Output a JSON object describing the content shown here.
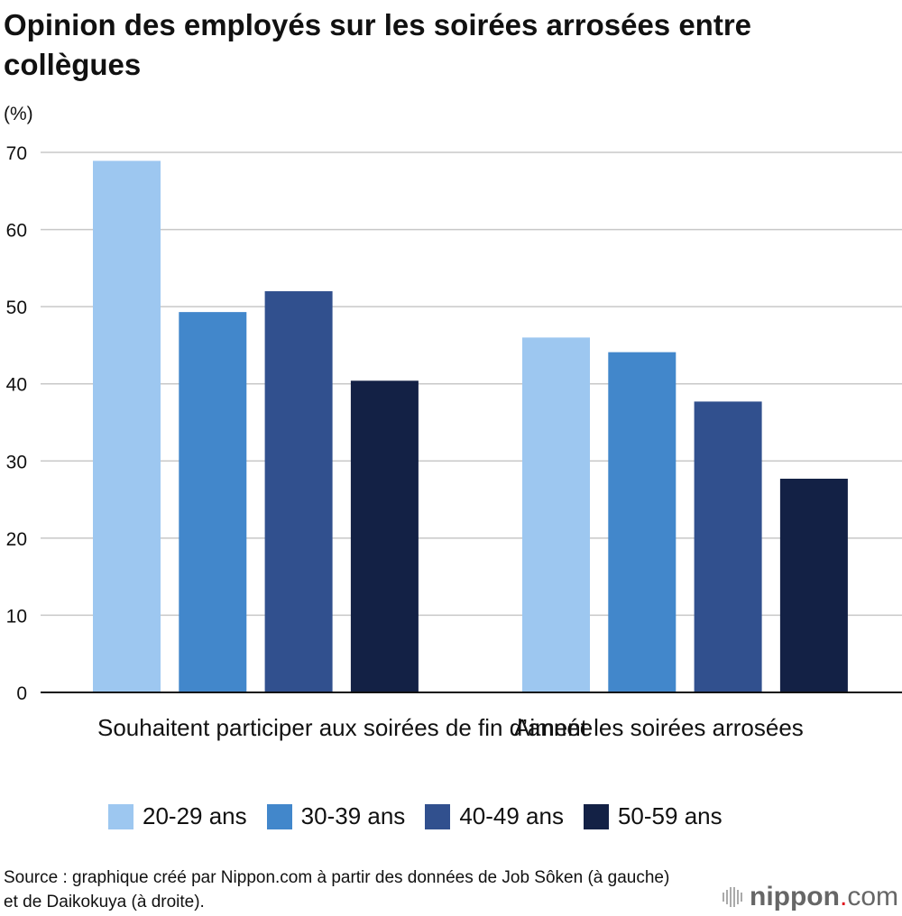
{
  "title": "Opinion des employés sur les soirées arrosées entre collègues",
  "unit_label": "(%)",
  "chart_data": {
    "type": "bar",
    "title": "Opinion des employés sur les soirées arrosées entre collègues",
    "ylabel": "(%)",
    "ylim": [
      0,
      70
    ],
    "yticks": [
      "0",
      "10",
      "20",
      "30",
      "40",
      "50",
      "60",
      "70"
    ],
    "categories": [
      "Souhaitent participer aux soirées de fin d’année",
      "Aiment les soirées arrosées"
    ],
    "series": [
      {
        "name": "20-29 ans",
        "color": "#9dc7f0",
        "values": [
          68.9,
          46.0
        ]
      },
      {
        "name": "30-39 ans",
        "color": "#4287cb",
        "values": [
          49.3,
          44.1
        ]
      },
      {
        "name": "40-49 ans",
        "color": "#31508e",
        "values": [
          52.0,
          37.7
        ]
      },
      {
        "name": "50-59 ans",
        "color": "#132145",
        "values": [
          40.4,
          27.7
        ]
      }
    ],
    "grid": true,
    "legend": "bottom"
  },
  "source": "Source : graphique créé par Nippon.com à partir des données de Job Sôken (à gauche) et de Daikokuya (à droite).",
  "logo": {
    "main": "nippon",
    "dot": ".",
    "suffix": "com"
  }
}
